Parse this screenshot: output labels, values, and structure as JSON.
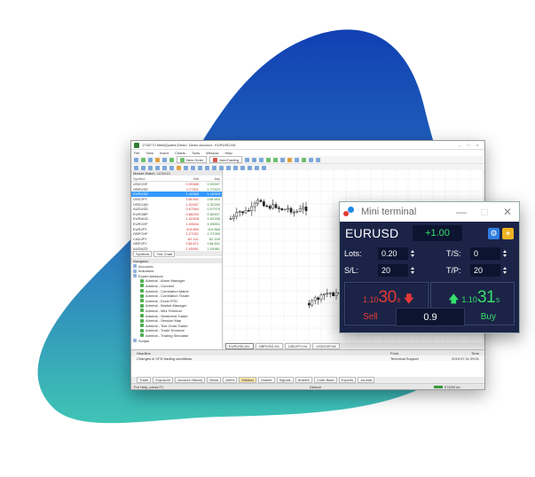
{
  "colors": {
    "blob_top": "#1140b3",
    "blob_bottom": "#3fc4b5",
    "panel": "#1b2447",
    "sell": "#e53935",
    "buy": "#36e06b"
  },
  "platform": {
    "title": "1726772 MetaQuotes-Demo: Demo Account - EURUSD,M1",
    "menu": [
      "File",
      "View",
      "Insert",
      "Charts",
      "Tools",
      "Window",
      "Help"
    ],
    "toolbar_new_order": "New Order",
    "toolbar_autotrading": "AutoTrading",
    "market_watch": {
      "title": "Market Watch: 12:54:21",
      "headers": [
        "Symbol",
        "Bid",
        "Ask"
      ],
      "rows": [
        {
          "symbol": "USDCHF",
          "bid": "0.99385",
          "ask": "0.99397"
        },
        {
          "symbol": "GBPUSD",
          "bid": "1.27811",
          "ask": "1.27823"
        },
        {
          "symbol": "EURUSD",
          "bid": "1.10308",
          "ask": "1.10315"
        },
        {
          "symbol": "USDJPY",
          "bid": "108.651",
          "ask": "108.663"
        },
        {
          "symbol": "USDCAD",
          "bid": "1.32267",
          "ask": "1.32283"
        },
        {
          "symbol": "AUDUSD",
          "bid": "0.67964",
          "ask": "0.67976"
        },
        {
          "symbol": "EURGBP",
          "bid": "0.86294",
          "ask": "0.86307"
        },
        {
          "symbol": "EURAUD",
          "bid": "1.62308",
          "ask": "1.62336"
        },
        {
          "symbol": "EURCHF",
          "bid": "1.09634",
          "ask": "1.09651"
        },
        {
          "symbol": "EURJPY",
          "bid": "119.855",
          "ask": "119.868"
        },
        {
          "symbol": "GBPCHF",
          "bid": "1.27031",
          "ask": "1.27059"
        },
        {
          "symbol": "CADJPY",
          "bid": "82.141",
          "ask": "82.159"
        },
        {
          "symbol": "GBPJPY",
          "bid": "138.871",
          "ask": "138.891"
        },
        {
          "symbol": "AUDNZD",
          "bid": "1.05951",
          "ask": "1.05981"
        }
      ]
    },
    "market_watch_tabs": [
      "Symbols",
      "Tick Chart"
    ],
    "navigator": {
      "title": "Navigator",
      "items": [
        "Accounts",
        "Indicators",
        "Expert Advisors",
        "Admiral - Alarm Manager",
        "Admiral - Connect",
        "Admiral - Correlation Matrix",
        "Admiral - Correlation Trader",
        "Admiral - Excel RTD",
        "Admiral - Market Manager",
        "Admiral - Mini Terminal",
        "Admiral - Sentiment Trader",
        "Admiral - Session Map",
        "Admiral - Tick Chart Trader",
        "Admiral - Trade Terminal",
        "Admiral - Trading Simulator",
        "Scripts"
      ]
    },
    "chart_tabs": [
      "EURUSD,M1",
      "GBPUSD,H4",
      "USDJPY,H4",
      "USDCHF,H4"
    ],
    "terminal": {
      "headers": [
        "Headline",
        "From",
        "Time"
      ],
      "row": {
        "headline": "Changes in CFD trading conditions",
        "from": "Technical Support",
        "time": "2019.07.11 09:01"
      },
      "tabs": [
        "Trade",
        "Exposure",
        "Account History",
        "News",
        "Alerts",
        "Mailbox",
        "Market",
        "Signals",
        "Articles",
        "Code Base",
        "Experts",
        "Journal"
      ]
    },
    "status": {
      "help": "For Help, press F1",
      "profile": "Default",
      "traffic": "6763/5 kb"
    }
  },
  "mini_terminal": {
    "title": "Mini terminal",
    "symbol": "EURUSD",
    "spread_change": "+1.00",
    "lots_label": "Lots:",
    "lots_value": "0.20",
    "ts_label": "T/S:",
    "ts_value": "0",
    "sl_label": "S/L:",
    "sl_value": "20",
    "tp_label": "T/P:",
    "tp_value": "20",
    "sell": {
      "prefix": "1.10",
      "big": "30",
      "sup": "8",
      "label": "Sell"
    },
    "buy": {
      "prefix": "1.10",
      "big": "31",
      "sup": "5",
      "label": "Buy"
    },
    "volume": "0.9"
  }
}
